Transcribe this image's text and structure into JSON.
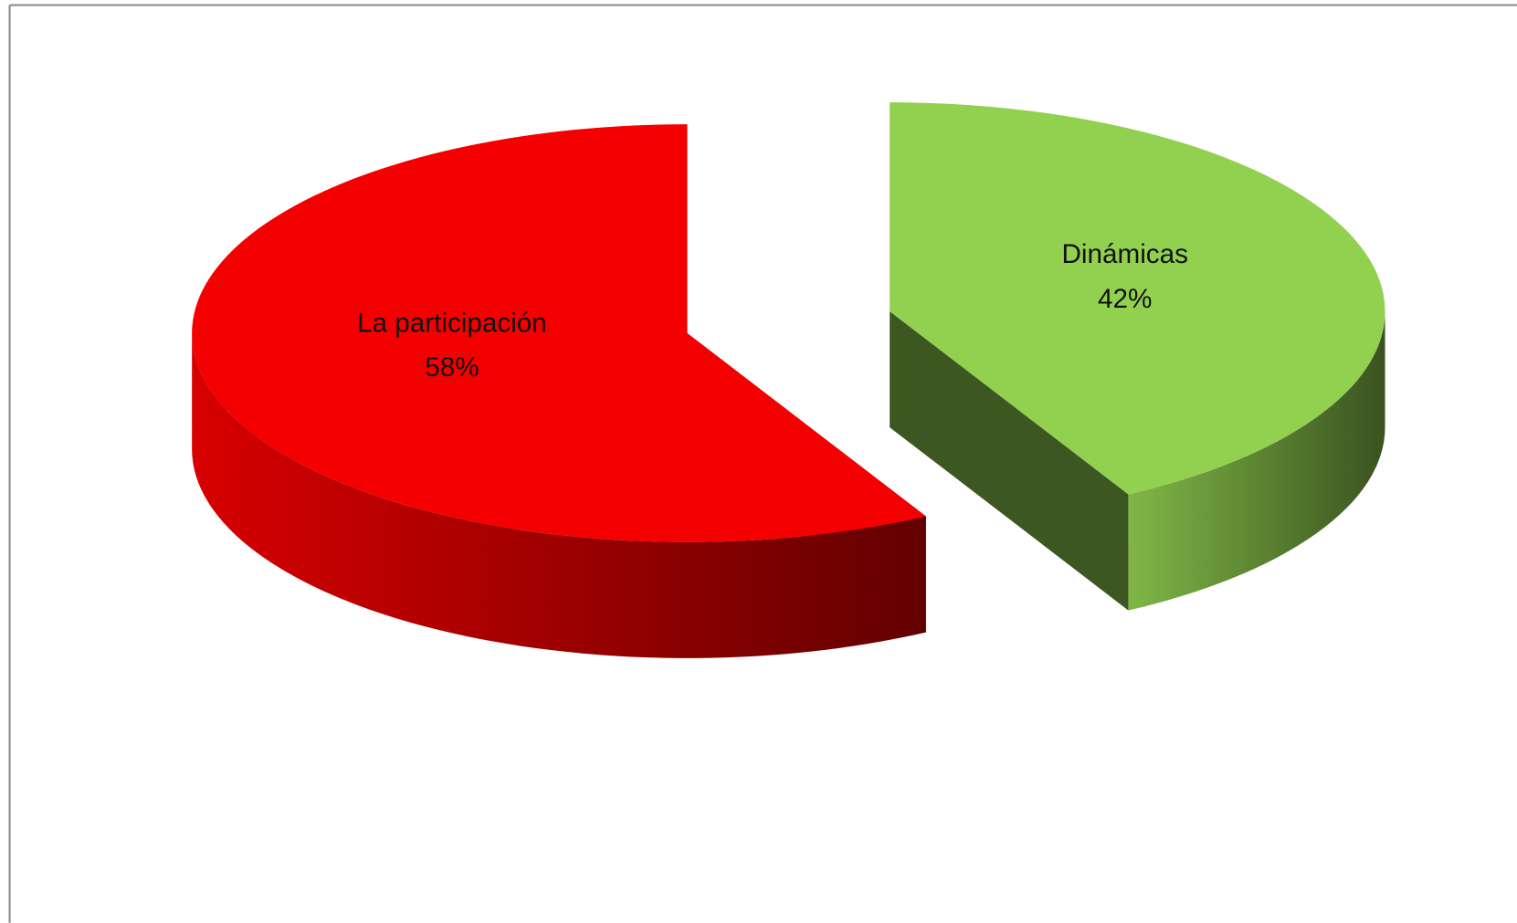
{
  "chart_data": {
    "type": "pie",
    "categories": [
      "La participación",
      "Dinámicas"
    ],
    "values": [
      58,
      42
    ],
    "value_labels": [
      "58%",
      "42%"
    ],
    "colors": [
      "#f50000",
      "#92d050"
    ]
  }
}
